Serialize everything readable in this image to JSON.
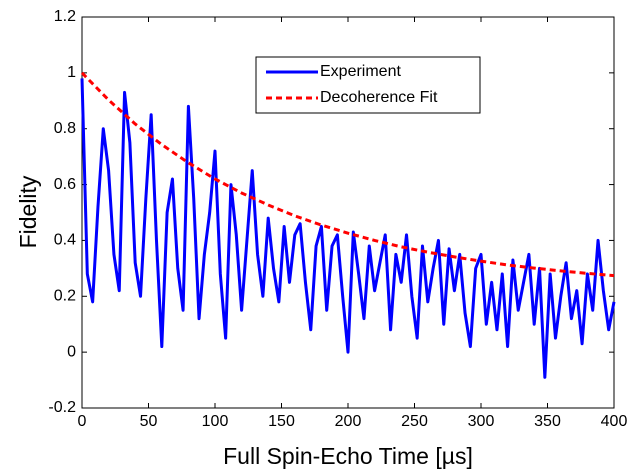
{
  "chart_data": {
    "type": "line",
    "xlabel": "Full Spin-Echo Time [µs]",
    "ylabel": "Fidelity",
    "xlim": [
      0,
      400
    ],
    "xticks": [
      0,
      50,
      100,
      150,
      200,
      250,
      300,
      350,
      400
    ],
    "ylim": [
      -0.2,
      1.2
    ],
    "yticks": [
      -0.2,
      0,
      0.2,
      0.4,
      0.6,
      0.8,
      1,
      1.2
    ],
    "grid": false,
    "legend": "upper center",
    "series": [
      {
        "name": "Experiment",
        "color": "#0000ff",
        "dash": "solid",
        "x": [
          0,
          4,
          8,
          12,
          16,
          20,
          24,
          28,
          32,
          36,
          40,
          44,
          48,
          52,
          56,
          60,
          64,
          68,
          72,
          76,
          80,
          84,
          88,
          92,
          96,
          100,
          104,
          108,
          112,
          116,
          120,
          124,
          128,
          132,
          136,
          140,
          144,
          148,
          152,
          156,
          160,
          164,
          168,
          172,
          176,
          180,
          184,
          188,
          192,
          196,
          200,
          204,
          208,
          212,
          216,
          220,
          224,
          228,
          232,
          236,
          240,
          244,
          248,
          252,
          256,
          260,
          264,
          268,
          272,
          276,
          280,
          284,
          288,
          292,
          296,
          300,
          304,
          308,
          312,
          316,
          320,
          324,
          328,
          332,
          336,
          340,
          344,
          348,
          352,
          356,
          360,
          364,
          368,
          372,
          376,
          380,
          384,
          388,
          392,
          396,
          400
        ],
        "values": [
          0.98,
          0.28,
          0.18,
          0.52,
          0.8,
          0.65,
          0.35,
          0.22,
          0.93,
          0.75,
          0.32,
          0.2,
          0.55,
          0.85,
          0.4,
          0.02,
          0.5,
          0.62,
          0.3,
          0.15,
          0.88,
          0.55,
          0.12,
          0.35,
          0.5,
          0.72,
          0.28,
          0.05,
          0.6,
          0.42,
          0.15,
          0.4,
          0.65,
          0.35,
          0.2,
          0.48,
          0.3,
          0.18,
          0.45,
          0.25,
          0.42,
          0.46,
          0.25,
          0.08,
          0.38,
          0.45,
          0.15,
          0.38,
          0.42,
          0.2,
          0.0,
          0.43,
          0.28,
          0.12,
          0.38,
          0.22,
          0.32,
          0.42,
          0.08,
          0.35,
          0.25,
          0.42,
          0.2,
          0.05,
          0.38,
          0.18,
          0.3,
          0.4,
          0.1,
          0.37,
          0.22,
          0.35,
          0.14,
          0.02,
          0.3,
          0.35,
          0.1,
          0.25,
          0.08,
          0.28,
          0.02,
          0.33,
          0.15,
          0.25,
          0.35,
          0.1,
          0.3,
          -0.09,
          0.28,
          0.05,
          0.2,
          0.32,
          0.12,
          0.22,
          0.03,
          0.28,
          0.15,
          0.4,
          0.22,
          0.08,
          0.18
        ]
      },
      {
        "name": "Decoherence Fit",
        "color": "#ff0000",
        "dash": "dashed",
        "x": [
          0,
          20,
          40,
          60,
          80,
          100,
          120,
          140,
          160,
          180,
          200,
          220,
          240,
          260,
          280,
          300,
          320,
          340,
          360,
          380,
          400
        ],
        "values": [
          1.0,
          0.903,
          0.817,
          0.743,
          0.678,
          0.62,
          0.57,
          0.527,
          0.488,
          0.455,
          0.426,
          0.4,
          0.377,
          0.358,
          0.341,
          0.326,
          0.312,
          0.301,
          0.291,
          0.282,
          0.274
        ]
      }
    ]
  }
}
